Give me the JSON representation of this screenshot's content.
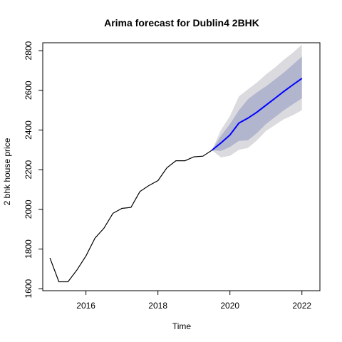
{
  "chart_data": {
    "type": "line",
    "title": "Arima forecast for Dublin4 2BHK",
    "xlabel": "Time",
    "ylabel": "2 bhk house price",
    "xlim": [
      2014.8,
      2022.5
    ],
    "ylim": [
      1590,
      2840
    ],
    "x_ticks": [
      2016,
      2018,
      2020,
      2022
    ],
    "x_tick_labels": [
      "2016",
      "2018",
      "2020",
      "2022"
    ],
    "y_ticks": [
      1600,
      1800,
      2000,
      2200,
      2400,
      2600,
      2800
    ],
    "y_tick_labels": [
      "1600",
      "1800",
      "2000",
      "2200",
      "2400",
      "2600",
      "2800"
    ],
    "grid": false,
    "colors": {
      "observed": "#000000",
      "forecast": "#0000ff",
      "band80": "#b1b5ce",
      "band95": "#dbdbdf"
    },
    "series": [
      {
        "role": "observed",
        "x": [
          2015.0,
          2015.25,
          2015.5,
          2015.75,
          2016.0,
          2016.25,
          2016.5,
          2016.75,
          2017.0,
          2017.25,
          2017.5,
          2017.75,
          2018.0,
          2018.25,
          2018.5,
          2018.75,
          2019.0,
          2019.25,
          2019.5
        ],
        "y": [
          1755,
          1635,
          1635,
          1695,
          1765,
          1855,
          1905,
          1980,
          2005,
          2010,
          2090,
          2120,
          2145,
          2210,
          2245,
          2245,
          2265,
          2268,
          2298
        ]
      },
      {
        "role": "forecast",
        "x": [
          2019.5,
          2019.75,
          2020.0,
          2020.25,
          2020.5,
          2020.75,
          2021.0,
          2021.25,
          2021.5,
          2021.75,
          2022.0
        ],
        "y": [
          2298,
          2335,
          2375,
          2435,
          2460,
          2490,
          2525,
          2560,
          2595,
          2628,
          2660
        ],
        "lo80": [
          2298,
          2295,
          2315,
          2345,
          2348,
          2385,
          2430,
          2465,
          2500,
          2530,
          2560
        ],
        "hi80": [
          2298,
          2370,
          2430,
          2500,
          2555,
          2590,
          2620,
          2655,
          2690,
          2730,
          2770
        ],
        "lo95": [
          2298,
          2262,
          2270,
          2300,
          2310,
          2348,
          2395,
          2425,
          2455,
          2475,
          2500
        ],
        "hi95": [
          2298,
          2400,
          2470,
          2570,
          2605,
          2640,
          2680,
          2715,
          2755,
          2790,
          2830
        ]
      }
    ]
  }
}
